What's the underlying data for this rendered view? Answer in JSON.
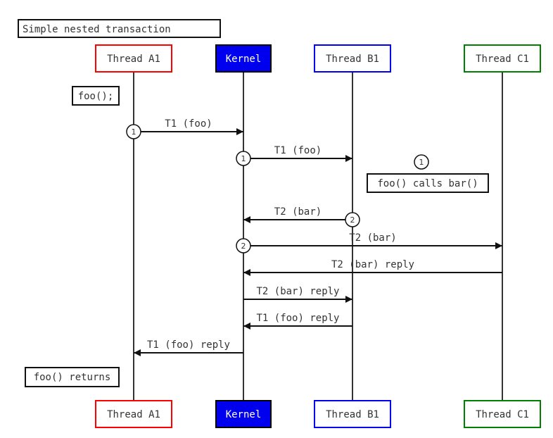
{
  "title": "Simple nested transaction",
  "participants": [
    {
      "id": "A1",
      "label": "Thread A1",
      "border": "#ff0000",
      "fill": "#ffffff",
      "text": "#333333"
    },
    {
      "id": "K",
      "label": "Kernel",
      "border": "#000000",
      "fill": "#0000ee",
      "text": "#ffffff"
    },
    {
      "id": "B1",
      "label": "Thread B1",
      "border": "#0000ee",
      "fill": "#ffffff",
      "text": "#333333"
    },
    {
      "id": "C1",
      "label": "Thread C1",
      "border": "#008000",
      "fill": "#ffffff",
      "text": "#333333"
    }
  ],
  "messages": [
    {
      "from": "A1",
      "to": "K",
      "label": "T1 (foo)",
      "marker": "1"
    },
    {
      "from": "K",
      "to": "B1",
      "label": "T1 (foo)",
      "marker": "1"
    },
    {
      "from": "B1",
      "to": "K",
      "label": "T2 (bar)",
      "marker": "2"
    },
    {
      "from": "K",
      "to": "C1",
      "label": "T2 (bar)",
      "marker": "2"
    },
    {
      "from": "C1",
      "to": "K",
      "label": "T2 (bar) reply",
      "marker": ""
    },
    {
      "from": "K",
      "to": "B1",
      "label": "T2 (bar) reply",
      "marker": ""
    },
    {
      "from": "B1",
      "to": "K",
      "label": "T1 (foo) reply",
      "marker": ""
    },
    {
      "from": "K",
      "to": "A1",
      "label": "T1 (foo) reply",
      "marker": ""
    }
  ],
  "notes": [
    {
      "label": "foo();"
    },
    {
      "label": "foo() calls bar()",
      "marker": "1"
    },
    {
      "label": "foo() returns"
    }
  ]
}
